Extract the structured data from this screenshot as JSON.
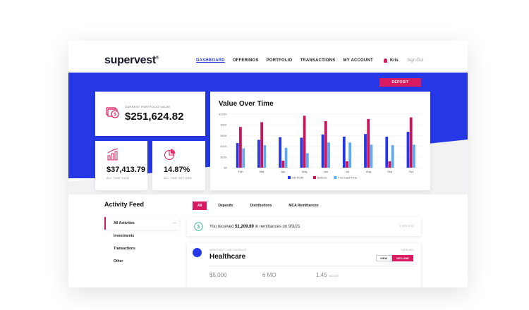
{
  "brand": {
    "logo": "supervest",
    "logo_mark": "®"
  },
  "nav": {
    "items": [
      "DASHBOARD",
      "OFFERINGS",
      "PORTFOLIO",
      "TRANSACTIONS",
      "MY ACCOUNT"
    ],
    "active": "DASHBOARD"
  },
  "user": {
    "name": "Kris",
    "signout": "Sign Out"
  },
  "deposit_label": "DEPOSIT",
  "portfolio": {
    "label": "CURRENT PORTFOLIO VALUE",
    "value": "$251,624.82"
  },
  "gain": {
    "value": "$37,413.79",
    "label": "ALL TIME GAIN"
  },
  "return": {
    "value": "14.87%",
    "label": "ALL TIME RETURN"
  },
  "colors": {
    "accent": "#d81b60",
    "brand_blue": "#2638e6",
    "series_profit": "#2638e6",
    "series_balance": "#c8155a",
    "series_cashflow": "#5ea9f2"
  },
  "chart_data": {
    "type": "bar",
    "title": "Value Over Time",
    "categories": [
      "Feb",
      "Mar",
      "Apr",
      "May",
      "Jun",
      "Jul",
      "Aug",
      "Sep",
      "Oct"
    ],
    "y_ticks": [
      "$0",
      "$20K",
      "$40K",
      "$60K",
      "$80K",
      "$100K"
    ],
    "ylim": [
      0,
      100000
    ],
    "series": [
      {
        "name": "Net Profit",
        "values": [
          46000,
          52000,
          57000,
          56000,
          62000,
          58000,
          63000,
          58000,
          67000
        ]
      },
      {
        "name": "Balance",
        "values": [
          76000,
          85000,
          13000,
          97000,
          87000,
          12000,
          91000,
          12000,
          94000
        ]
      },
      {
        "name": "Free Cash Flow",
        "values": [
          36000,
          42000,
          37000,
          27000,
          47000,
          47000,
          43000,
          42000,
          43000
        ]
      }
    ],
    "legend": "bottom",
    "grid": true
  },
  "feed": {
    "title": "Activity Feed",
    "tabs": [
      "All",
      "Deposits",
      "Distributions",
      "MCA Remittances"
    ],
    "active_tab": "All",
    "side_items": [
      "All Activities",
      "Investments",
      "Transactions",
      "Other"
    ],
    "side_active": "All Activities",
    "remit": {
      "prefix": "You received ",
      "amount": "$1,209.89",
      "suffix": " in remittances on 9/3/21",
      "date": "9 APR 2021"
    },
    "offering": {
      "subtitle": "MERCHANT CASH ADVANCE",
      "title": "Healthcare",
      "date": "9 APR 2021",
      "view_label": "VIEW",
      "decline_label": "DECLINE",
      "amount": "$5,000",
      "term": "6 MO",
      "factor": "1.45",
      "factor_label": "FACTOR"
    }
  }
}
